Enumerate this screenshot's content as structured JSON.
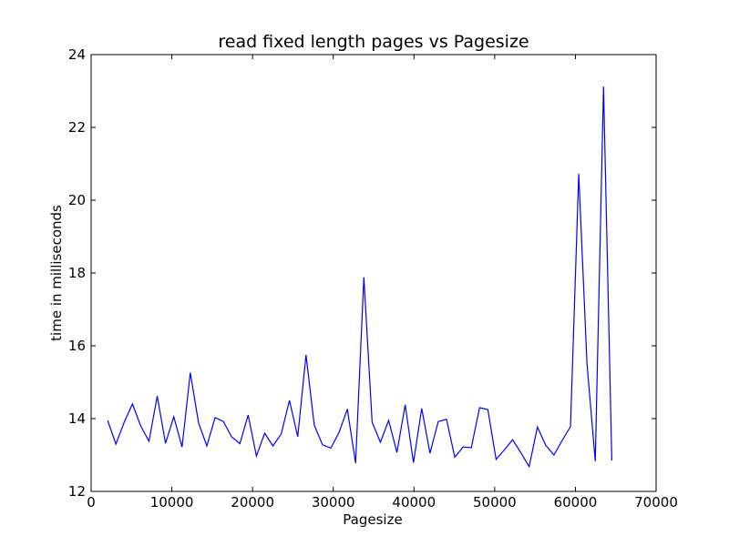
{
  "chart_data": {
    "type": "line",
    "title": "read fixed length pages vs Pagesize",
    "xlabel": "Pagesize",
    "ylabel": "time in milliseconds",
    "xlim": [
      0,
      70000
    ],
    "ylim": [
      12,
      24
    ],
    "xticks": [
      0,
      10000,
      20000,
      30000,
      40000,
      50000,
      60000,
      70000
    ],
    "yticks": [
      12,
      14,
      16,
      18,
      20,
      22,
      24
    ],
    "grid": false,
    "color": "#0000ff",
    "series": [
      {
        "x": [
          2048,
          3072,
          4096,
          5120,
          6144,
          7168,
          8192,
          9216,
          10240,
          11264,
          12288,
          13312,
          14336,
          15360,
          16384,
          17408,
          18432,
          19456,
          20480,
          21504,
          22528,
          23552,
          24576,
          25600,
          26624,
          27648,
          28672,
          29696,
          30720,
          31744,
          32768,
          33792,
          34816,
          35840,
          36864,
          37888,
          38912,
          39936,
          40960,
          41984,
          43008,
          44032,
          45056,
          46080,
          47104,
          48128,
          49152,
          50176,
          51200,
          52224,
          53248,
          54272,
          55296,
          56320,
          57344,
          58368,
          59392,
          60416,
          61440,
          62464,
          63488,
          64512
        ],
        "y": [
          13.95,
          13.3,
          13.9,
          14.4,
          13.8,
          13.38,
          14.62,
          13.32,
          14.05,
          13.22,
          15.26,
          13.88,
          13.25,
          14.03,
          13.92,
          13.5,
          13.31,
          14.1,
          12.97,
          13.6,
          13.25,
          13.58,
          14.5,
          13.5,
          15.75,
          13.82,
          13.28,
          13.19,
          13.62,
          14.26,
          12.78,
          17.88,
          13.9,
          13.35,
          13.95,
          13.07,
          14.38,
          12.79,
          14.28,
          13.05,
          13.92,
          13.98,
          12.94,
          13.22,
          13.2,
          14.3,
          14.25,
          12.88,
          13.14,
          13.42,
          13.06,
          12.68,
          13.77,
          13.27,
          13.0,
          13.4,
          13.78,
          20.72,
          15.5,
          12.83,
          23.12,
          12.85
        ]
      }
    ]
  }
}
